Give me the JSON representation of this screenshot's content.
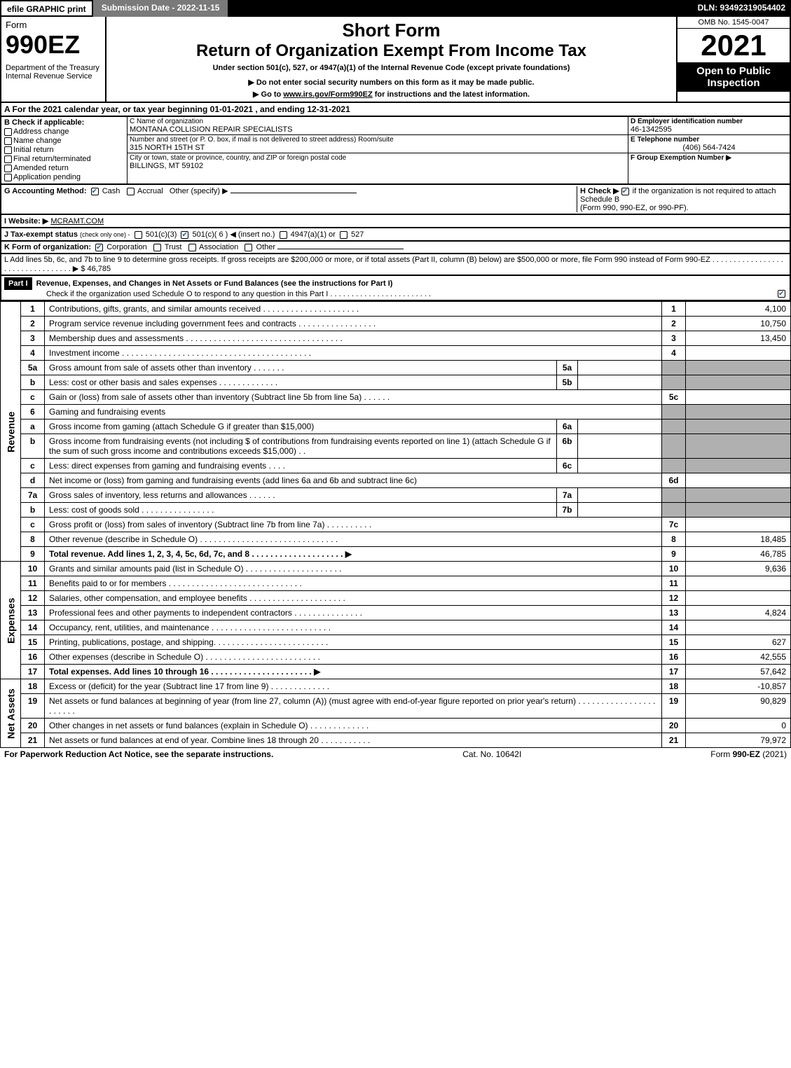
{
  "topbar": {
    "efile": "efile GRAPHIC print",
    "subdate_label": "Submission Date - 2022-11-15",
    "dln": "DLN: 93492319054402"
  },
  "header": {
    "form_word": "Form",
    "form_number": "990EZ",
    "dept": "Department of the Treasury",
    "irs": "Internal Revenue Service",
    "short_form": "Short Form",
    "return_title": "Return of Organization Exempt From Income Tax",
    "under": "Under section 501(c), 527, or 4947(a)(1) of the Internal Revenue Code (except private foundations)",
    "donot": "▶ Do not enter social security numbers on this form as it may be made public.",
    "goto_prefix": "▶ Go to ",
    "goto_link": "www.irs.gov/Form990EZ",
    "goto_suffix": " for instructions and the latest information.",
    "omb": "OMB No. 1545-0047",
    "year": "2021",
    "open": "Open to Public Inspection"
  },
  "sectionA": {
    "line": "A  For the 2021 calendar year, or tax year beginning 01-01-2021 , and ending 12-31-2021"
  },
  "sectionB": {
    "label": "B  Check if applicable:",
    "items": [
      "Address change",
      "Name change",
      "Initial return",
      "Final return/terminated",
      "Amended return",
      "Application pending"
    ]
  },
  "sectionC": {
    "label_name": "C Name of organization",
    "org_name": "MONTANA COLLISION REPAIR SPECIALISTS",
    "label_street": "Number and street (or P. O. box, if mail is not delivered to street address)          Room/suite",
    "street": "315 NORTH 15TH ST",
    "label_city": "City or town, state or province, country, and ZIP or foreign postal code",
    "city": "BILLINGS, MT  59102"
  },
  "sectionD": {
    "label": "D Employer identification number",
    "ein": "46-1342595",
    "label_phone": "E Telephone number",
    "phone": "(406) 564-7424",
    "label_group": "F Group Exemption Number  ▶"
  },
  "sectionG": {
    "label": "G Accounting Method:",
    "cash": "Cash",
    "accrual": "Accrual",
    "other": "Other (specify) ▶"
  },
  "sectionH": {
    "label": "H  Check ▶",
    "text": "if the organization is not required to attach Schedule B",
    "text2": "(Form 990, 990-EZ, or 990-PF)."
  },
  "sectionI": {
    "label": "I Website: ▶",
    "value": "MCRAMT.COM"
  },
  "sectionJ": {
    "label": "J Tax-exempt status",
    "note": "(check only one) -",
    "opt1": "501(c)(3)",
    "opt2": "501(c)( 6 ) ◀ (insert no.)",
    "opt3": "4947(a)(1) or",
    "opt4": "527"
  },
  "sectionK": {
    "label": "K Form of organization:",
    "opts": [
      "Corporation",
      "Trust",
      "Association",
      "Other"
    ]
  },
  "sectionL": {
    "text": "L Add lines 5b, 6c, and 7b to line 9 to determine gross receipts. If gross receipts are $200,000 or more, or if total assets (Part II, column (B) below) are $500,000 or more, file Form 990 instead of Form 990-EZ . . . . . . . . . . . . . . . . . . . . . . . . . . . . . . . . . ▶ $",
    "amount": "46,785"
  },
  "part1": {
    "header_label": "Part I",
    "header_text": "Revenue, Expenses, and Changes in Net Assets or Fund Balances (see the instructions for Part I)",
    "check_text": "Check if the organization used Schedule O to respond to any question in this Part I . . . . . . . . . . . . . . . . . . . . . . . .",
    "sidebars": {
      "revenue": "Revenue",
      "expenses": "Expenses",
      "netassets": "Net Assets"
    },
    "lines": [
      {
        "n": "1",
        "desc": "Contributions, gifts, grants, and similar amounts received . . . . . . . . . . . . . . . . . . . . .",
        "rn": "1",
        "amt": "4,100"
      },
      {
        "n": "2",
        "desc": "Program service revenue including government fees and contracts . . . . . . . . . . . . . . . . .",
        "rn": "2",
        "amt": "10,750"
      },
      {
        "n": "3",
        "desc": "Membership dues and assessments . . . . . . . . . . . . . . . . . . . . . . . . . . . . . . . . . .",
        "rn": "3",
        "amt": "13,450"
      },
      {
        "n": "4",
        "desc": "Investment income . . . . . . . . . . . . . . . . . . . . . . . . . . . . . . . . . . . . . . . . .",
        "rn": "4",
        "amt": ""
      },
      {
        "n": "5a",
        "desc": "Gross amount from sale of assets other than inventory . . . . . . . ",
        "mid_n": "5a",
        "mid_v": "",
        "rn": "",
        "amt": "",
        "shade_right": true
      },
      {
        "n": "b",
        "desc": "Less: cost or other basis and sales expenses . . . . . . . . . . . . . ",
        "mid_n": "5b",
        "mid_v": "",
        "rn": "",
        "amt": "",
        "shade_right": true
      },
      {
        "n": "c",
        "desc": "Gain or (loss) from sale of assets other than inventory (Subtract line 5b from line 5a) . . . . . .",
        "rn": "5c",
        "amt": ""
      },
      {
        "n": "6",
        "desc": "Gaming and fundraising events",
        "rn": "",
        "amt": "",
        "shade_right": true
      },
      {
        "n": "a",
        "desc": "Gross income from gaming (attach Schedule G if greater than $15,000)",
        "mid_n": "6a",
        "mid_v": "",
        "rn": "",
        "amt": "",
        "shade_right": true
      },
      {
        "n": "b",
        "desc": "Gross income from fundraising events (not including $                              of contributions from fundraising events reported on line 1) (attach Schedule G if the sum of such gross income and contributions exceeds $15,000)   . .",
        "mid_n": "6b",
        "mid_v": "",
        "rn": "",
        "amt": "",
        "shade_right": true
      },
      {
        "n": "c",
        "desc": "Less: direct expenses from gaming and fundraising events   . . . .",
        "mid_n": "6c",
        "mid_v": "",
        "rn": "",
        "amt": "",
        "shade_right": true
      },
      {
        "n": "d",
        "desc": "Net income or (loss) from gaming and fundraising events (add lines 6a and 6b and subtract line 6c)",
        "rn": "6d",
        "amt": ""
      },
      {
        "n": "7a",
        "desc": "Gross sales of inventory, less returns and allowances . . . . . . ",
        "mid_n": "7a",
        "mid_v": "",
        "rn": "",
        "amt": "",
        "shade_right": true
      },
      {
        "n": "b",
        "desc": "Less: cost of goods sold         . . . . . . . . . . . . . . . .",
        "mid_n": "7b",
        "mid_v": "",
        "rn": "",
        "amt": "",
        "shade_right": true
      },
      {
        "n": "c",
        "desc": "Gross profit or (loss) from sales of inventory (Subtract line 7b from line 7a) . . . . . . . . . .",
        "rn": "7c",
        "amt": ""
      },
      {
        "n": "8",
        "desc": "Other revenue (describe in Schedule O) . . . . . . . . . . . . . . . . . . . . . . . . . . . . . .",
        "rn": "8",
        "amt": "18,485"
      },
      {
        "n": "9",
        "desc": "Total revenue. Add lines 1, 2, 3, 4, 5c, 6d, 7c, and 8  . . . . . . . . . . . . . . . . . . . .     ▶",
        "rn": "9",
        "amt": "46,785",
        "bold": true
      },
      {
        "n": "10",
        "desc": "Grants and similar amounts paid (list in Schedule O) . . . . . . . . . . . . . . . . . . . . .",
        "rn": "10",
        "amt": "9,636",
        "group": "expenses"
      },
      {
        "n": "11",
        "desc": "Benefits paid to or for members       . . . . . . . . . . . . . . . . . . . . . . . . . . . . .",
        "rn": "11",
        "amt": "",
        "group": "expenses"
      },
      {
        "n": "12",
        "desc": "Salaries, other compensation, and employee benefits . . . . . . . . . . . . . . . . . . . . .",
        "rn": "12",
        "amt": "",
        "group": "expenses"
      },
      {
        "n": "13",
        "desc": "Professional fees and other payments to independent contractors . . . . . . . . . . . . . . .",
        "rn": "13",
        "amt": "4,824",
        "group": "expenses"
      },
      {
        "n": "14",
        "desc": "Occupancy, rent, utilities, and maintenance . . . . . . . . . . . . . . . . . . . . . . . . . .",
        "rn": "14",
        "amt": "",
        "group": "expenses"
      },
      {
        "n": "15",
        "desc": "Printing, publications, postage, and shipping. . . . . . . . . . . . . . . . . . . . . . . . .",
        "rn": "15",
        "amt": "627",
        "group": "expenses"
      },
      {
        "n": "16",
        "desc": "Other expenses (describe in Schedule O)     . . . . . . . . . . . . . . . . . . . . . . . . .",
        "rn": "16",
        "amt": "42,555",
        "group": "expenses"
      },
      {
        "n": "17",
        "desc": "Total expenses. Add lines 10 through 16     . . . . . . . . . . . . . . . . . . . . . .     ▶",
        "rn": "17",
        "amt": "57,642",
        "group": "expenses",
        "bold": true
      },
      {
        "n": "18",
        "desc": "Excess or (deficit) for the year (Subtract line 17 from line 9)        . . . . . . . . . . . . .",
        "rn": "18",
        "amt": "-10,857",
        "group": "netassets"
      },
      {
        "n": "19",
        "desc": "Net assets or fund balances at beginning of year (from line 27, column (A)) (must agree with end-of-year figure reported on prior year's return) . . . . . . . . . . . . . . . . . . . . . . .",
        "rn": "19",
        "amt": "90,829",
        "group": "netassets"
      },
      {
        "n": "20",
        "desc": "Other changes in net assets or fund balances (explain in Schedule O) . . . . . . . . . . . . .",
        "rn": "20",
        "amt": "0",
        "group": "netassets"
      },
      {
        "n": "21",
        "desc": "Net assets or fund balances at end of year. Combine lines 18 through 20 . . . . . . . . . . .",
        "rn": "21",
        "amt": "79,972",
        "group": "netassets"
      }
    ]
  },
  "footer": {
    "left": "For Paperwork Reduction Act Notice, see the separate instructions.",
    "mid": "Cat. No. 10642I",
    "right_prefix": "Form ",
    "right_form": "990-EZ",
    "right_suffix": " (2021)"
  }
}
